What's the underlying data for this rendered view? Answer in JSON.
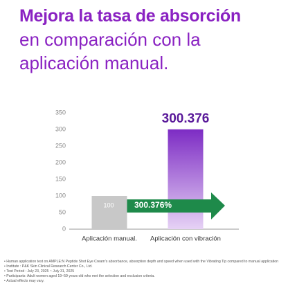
{
  "chart_data": {
    "type": "bar",
    "title": "Mejora la tasa de absorción",
    "subtitle": [
      "en comparación con la",
      "aplicación manual."
    ],
    "categories": [
      "Aplicación manual.",
      "Aplicación con vibración"
    ],
    "values": [
      100,
      300.376
    ],
    "colors": [
      "#c8c8c8",
      "url(#purpleGrad)"
    ],
    "ylim": [
      0,
      350
    ],
    "yticks": [
      0,
      50,
      100,
      150,
      200,
      250,
      300,
      350
    ],
    "grid": false,
    "annotation": "300.376%",
    "footnotes": [
      "Human application test on AMPLE:N Peptide Shot Eye Cream's absorbance, absorption depth and speed when used with the Vibrating Tip compared to manual application",
      "Institute : P&K Skin Clinical Research Center Co., Ltd.",
      "Test Period : July 23, 2025 ~ July 31, 2025",
      "Participants: Adult women aged 19~59 years old who met the selection and exclusion criteria.",
      "Actual effects may vary."
    ]
  }
}
